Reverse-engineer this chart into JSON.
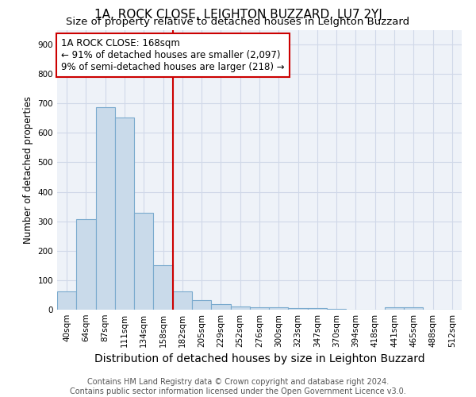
{
  "title": "1A, ROCK CLOSE, LEIGHTON BUZZARD, LU7 2YJ",
  "subtitle": "Size of property relative to detached houses in Leighton Buzzard",
  "xlabel": "Distribution of detached houses by size in Leighton Buzzard",
  "ylabel": "Number of detached properties",
  "bar_labels": [
    "40sqm",
    "64sqm",
    "87sqm",
    "111sqm",
    "134sqm",
    "158sqm",
    "182sqm",
    "205sqm",
    "229sqm",
    "252sqm",
    "276sqm",
    "300sqm",
    "323sqm",
    "347sqm",
    "370sqm",
    "394sqm",
    "418sqm",
    "441sqm",
    "465sqm",
    "488sqm",
    "512sqm"
  ],
  "bar_values": [
    63,
    308,
    687,
    651,
    330,
    150,
    63,
    33,
    20,
    11,
    8,
    8,
    5,
    5,
    2,
    0,
    0,
    7,
    7,
    1,
    0
  ],
  "bar_color": "#c9daea",
  "bar_edge_color": "#7aaace",
  "vline_index": 5.5,
  "vline_color": "#cc0000",
  "annotation_text": "1A ROCK CLOSE: 168sqm\n← 91% of detached houses are smaller (2,097)\n9% of semi-detached houses are larger (218) →",
  "annotation_box_facecolor": "#ffffff",
  "annotation_box_edgecolor": "#cc0000",
  "footer_text": "Contains HM Land Registry data © Crown copyright and database right 2024.\nContains public sector information licensed under the Open Government Licence v3.0.",
  "ylim": [
    0,
    950
  ],
  "yticks": [
    0,
    100,
    200,
    300,
    400,
    500,
    600,
    700,
    800,
    900
  ],
  "grid_color": "#d0d8e8",
  "background_color": "#eef2f8",
  "title_fontsize": 11,
  "subtitle_fontsize": 9.5,
  "xlabel_fontsize": 10,
  "ylabel_fontsize": 8.5,
  "tick_fontsize": 7.5,
  "annotation_fontsize": 8.5,
  "footer_fontsize": 7
}
